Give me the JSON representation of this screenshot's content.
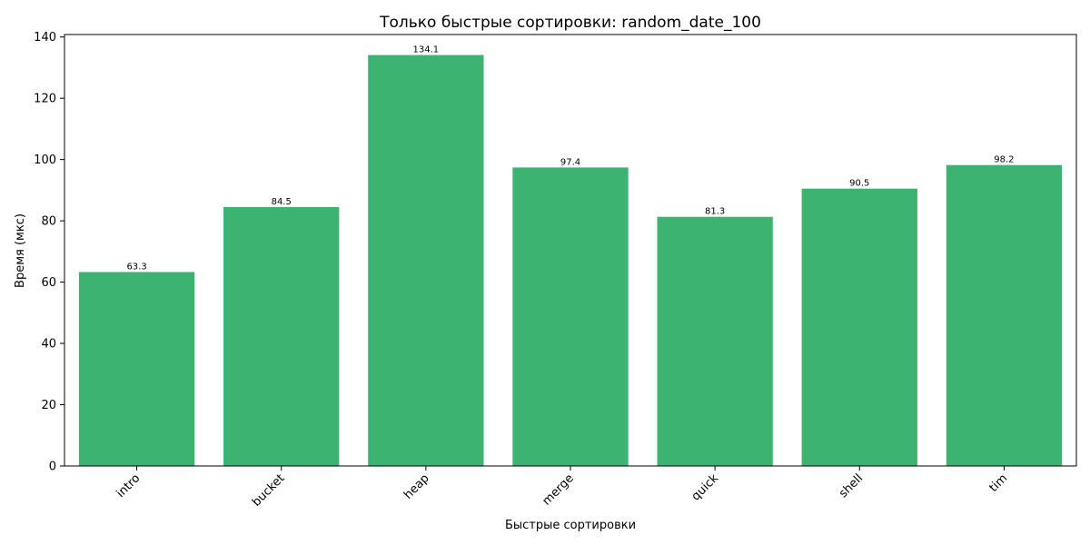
{
  "chart_data": {
    "type": "bar",
    "title": "Только быстрые сортировки: random_date_100",
    "xlabel": "Быстрые сортировки",
    "ylabel": "Время (мкс)",
    "categories": [
      "intro",
      "bucket",
      "heap",
      "merge",
      "quick",
      "shell",
      "tim"
    ],
    "values": [
      63.3,
      84.5,
      134.1,
      97.4,
      81.3,
      90.5,
      98.2
    ],
    "data_labels": [
      "63.3",
      "84.5",
      "134.1",
      "97.4",
      "81.3",
      "90.5",
      "98.2"
    ],
    "ylim": [
      0,
      140.8
    ],
    "yticks": [
      0,
      20,
      40,
      60,
      80,
      100,
      120,
      140
    ],
    "bar_color": "#3cb371",
    "grid": false,
    "legend": "none",
    "xtick_rotation_deg": 45
  }
}
